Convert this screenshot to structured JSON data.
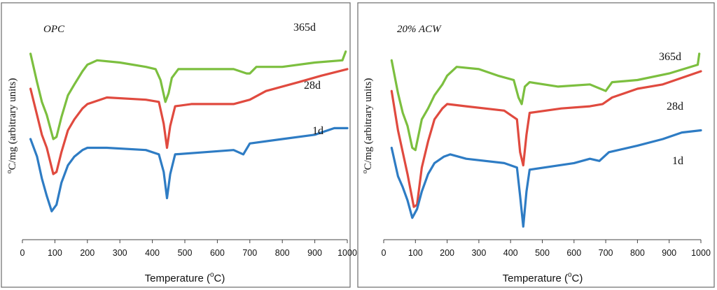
{
  "chart_data": [
    {
      "type": "line",
      "title": "OPC",
      "xlabel": "Temperature (°C)",
      "xlabel_parts": {
        "pre": "Temperature (",
        "sup": "o",
        "post": "C)"
      },
      "ylabel": "°C/mg (arbitrary units)",
      "ylabel_parts": {
        "sup": "o",
        "post": "C/mg (arbitrary units)"
      },
      "xlim": [
        0,
        1000
      ],
      "ylim": [
        0,
        1
      ],
      "xticks": [
        "0",
        "100",
        "200",
        "300",
        "400",
        "500",
        "600",
        "700",
        "800",
        "900",
        "1000"
      ],
      "series": [
        {
          "name": "365d",
          "color": "#7cbf3f",
          "points": [
            [
              25,
              0.85
            ],
            [
              45,
              0.72
            ],
            [
              60,
              0.63
            ],
            [
              75,
              0.57
            ],
            [
              95,
              0.46
            ],
            [
              105,
              0.47
            ],
            [
              120,
              0.56
            ],
            [
              140,
              0.66
            ],
            [
              160,
              0.71
            ],
            [
              185,
              0.77
            ],
            [
              200,
              0.8
            ],
            [
              230,
              0.82
            ],
            [
              300,
              0.81
            ],
            [
              380,
              0.79
            ],
            [
              410,
              0.78
            ],
            [
              425,
              0.73
            ],
            [
              440,
              0.63
            ],
            [
              450,
              0.67
            ],
            [
              460,
              0.74
            ],
            [
              480,
              0.78
            ],
            [
              550,
              0.78
            ],
            [
              650,
              0.78
            ],
            [
              690,
              0.76
            ],
            [
              700,
              0.76
            ],
            [
              720,
              0.79
            ],
            [
              800,
              0.79
            ],
            [
              900,
              0.81
            ],
            [
              985,
              0.82
            ],
            [
              995,
              0.86
            ]
          ]
        },
        {
          "name": "28d",
          "color": "#e04a3f",
          "points": [
            [
              25,
              0.69
            ],
            [
              45,
              0.57
            ],
            [
              60,
              0.48
            ],
            [
              75,
              0.42
            ],
            [
              95,
              0.3
            ],
            [
              105,
              0.31
            ],
            [
              120,
              0.4
            ],
            [
              140,
              0.5
            ],
            [
              160,
              0.55
            ],
            [
              185,
              0.6
            ],
            [
              200,
              0.62
            ],
            [
              260,
              0.65
            ],
            [
              380,
              0.64
            ],
            [
              420,
              0.63
            ],
            [
              435,
              0.53
            ],
            [
              445,
              0.42
            ],
            [
              455,
              0.52
            ],
            [
              470,
              0.61
            ],
            [
              520,
              0.62
            ],
            [
              650,
              0.62
            ],
            [
              700,
              0.64
            ],
            [
              750,
              0.68
            ],
            [
              850,
              0.72
            ],
            [
              920,
              0.75
            ],
            [
              1000,
              0.78
            ]
          ]
        },
        {
          "name": "1d",
          "color": "#2e7cc4",
          "points": [
            [
              25,
              0.46
            ],
            [
              45,
              0.38
            ],
            [
              60,
              0.28
            ],
            [
              75,
              0.2
            ],
            [
              90,
              0.13
            ],
            [
              105,
              0.16
            ],
            [
              120,
              0.26
            ],
            [
              140,
              0.34
            ],
            [
              160,
              0.38
            ],
            [
              185,
              0.41
            ],
            [
              200,
              0.42
            ],
            [
              260,
              0.42
            ],
            [
              380,
              0.41
            ],
            [
              420,
              0.39
            ],
            [
              435,
              0.31
            ],
            [
              445,
              0.19
            ],
            [
              455,
              0.3
            ],
            [
              470,
              0.39
            ],
            [
              560,
              0.4
            ],
            [
              650,
              0.41
            ],
            [
              680,
              0.39
            ],
            [
              700,
              0.44
            ],
            [
              800,
              0.46
            ],
            [
              900,
              0.48
            ],
            [
              960,
              0.51
            ],
            [
              1000,
              0.51
            ]
          ]
        }
      ],
      "series_labels": [
        "365d",
        "28d",
        "1d"
      ]
    },
    {
      "type": "line",
      "title": "20% ACW",
      "xlabel": "Temperature (°C)",
      "xlabel_parts": {
        "pre": "Temperature (",
        "sup": "o",
        "post": "C)"
      },
      "ylabel": "°C/mg (arbitrary units)",
      "ylabel_parts": {
        "sup": "o",
        "post": "C/mg (arbitrary units)"
      },
      "xlim": [
        0,
        1000
      ],
      "ylim": [
        0,
        1
      ],
      "xticks": [
        "0",
        "100",
        "200",
        "300",
        "400",
        "500",
        "600",
        "700",
        "800",
        "900",
        "1000"
      ],
      "series": [
        {
          "name": "365d",
          "color": "#7cbf3f",
          "points": [
            [
              25,
              0.82
            ],
            [
              45,
              0.67
            ],
            [
              60,
              0.58
            ],
            [
              75,
              0.52
            ],
            [
              90,
              0.42
            ],
            [
              100,
              0.41
            ],
            [
              120,
              0.55
            ],
            [
              140,
              0.6
            ],
            [
              160,
              0.66
            ],
            [
              185,
              0.71
            ],
            [
              200,
              0.75
            ],
            [
              230,
              0.79
            ],
            [
              300,
              0.78
            ],
            [
              360,
              0.75
            ],
            [
              410,
              0.73
            ],
            [
              425,
              0.65
            ],
            [
              435,
              0.62
            ],
            [
              445,
              0.7
            ],
            [
              460,
              0.72
            ],
            [
              550,
              0.7
            ],
            [
              650,
              0.71
            ],
            [
              700,
              0.68
            ],
            [
              720,
              0.72
            ],
            [
              800,
              0.73
            ],
            [
              900,
              0.76
            ],
            [
              990,
              0.8
            ],
            [
              995,
              0.85
            ]
          ]
        },
        {
          "name": "28d",
          "color": "#e04a3f",
          "points": [
            [
              25,
              0.68
            ],
            [
              45,
              0.5
            ],
            [
              60,
              0.4
            ],
            [
              75,
              0.3
            ],
            [
              95,
              0.15
            ],
            [
              105,
              0.16
            ],
            [
              120,
              0.33
            ],
            [
              140,
              0.45
            ],
            [
              160,
              0.55
            ],
            [
              185,
              0.6
            ],
            [
              200,
              0.62
            ],
            [
              260,
              0.61
            ],
            [
              380,
              0.59
            ],
            [
              420,
              0.55
            ],
            [
              430,
              0.4
            ],
            [
              440,
              0.34
            ],
            [
              450,
              0.48
            ],
            [
              460,
              0.58
            ],
            [
              560,
              0.6
            ],
            [
              650,
              0.61
            ],
            [
              690,
              0.62
            ],
            [
              720,
              0.65
            ],
            [
              800,
              0.69
            ],
            [
              880,
              0.71
            ],
            [
              940,
              0.74
            ],
            [
              1000,
              0.77
            ]
          ]
        },
        {
          "name": "1d",
          "color": "#2e7cc4",
          "points": [
            [
              25,
              0.42
            ],
            [
              45,
              0.29
            ],
            [
              60,
              0.24
            ],
            [
              75,
              0.18
            ],
            [
              90,
              0.1
            ],
            [
              105,
              0.14
            ],
            [
              120,
              0.22
            ],
            [
              140,
              0.3
            ],
            [
              160,
              0.35
            ],
            [
              190,
              0.38
            ],
            [
              210,
              0.39
            ],
            [
              260,
              0.37
            ],
            [
              380,
              0.35
            ],
            [
              420,
              0.33
            ],
            [
              430,
              0.2
            ],
            [
              440,
              0.06
            ],
            [
              450,
              0.22
            ],
            [
              460,
              0.32
            ],
            [
              600,
              0.35
            ],
            [
              650,
              0.37
            ],
            [
              680,
              0.36
            ],
            [
              710,
              0.4
            ],
            [
              800,
              0.43
            ],
            [
              880,
              0.46
            ],
            [
              940,
              0.49
            ],
            [
              1000,
              0.5
            ]
          ]
        }
      ],
      "series_labels": [
        "365d",
        "28d",
        "1d"
      ]
    }
  ]
}
